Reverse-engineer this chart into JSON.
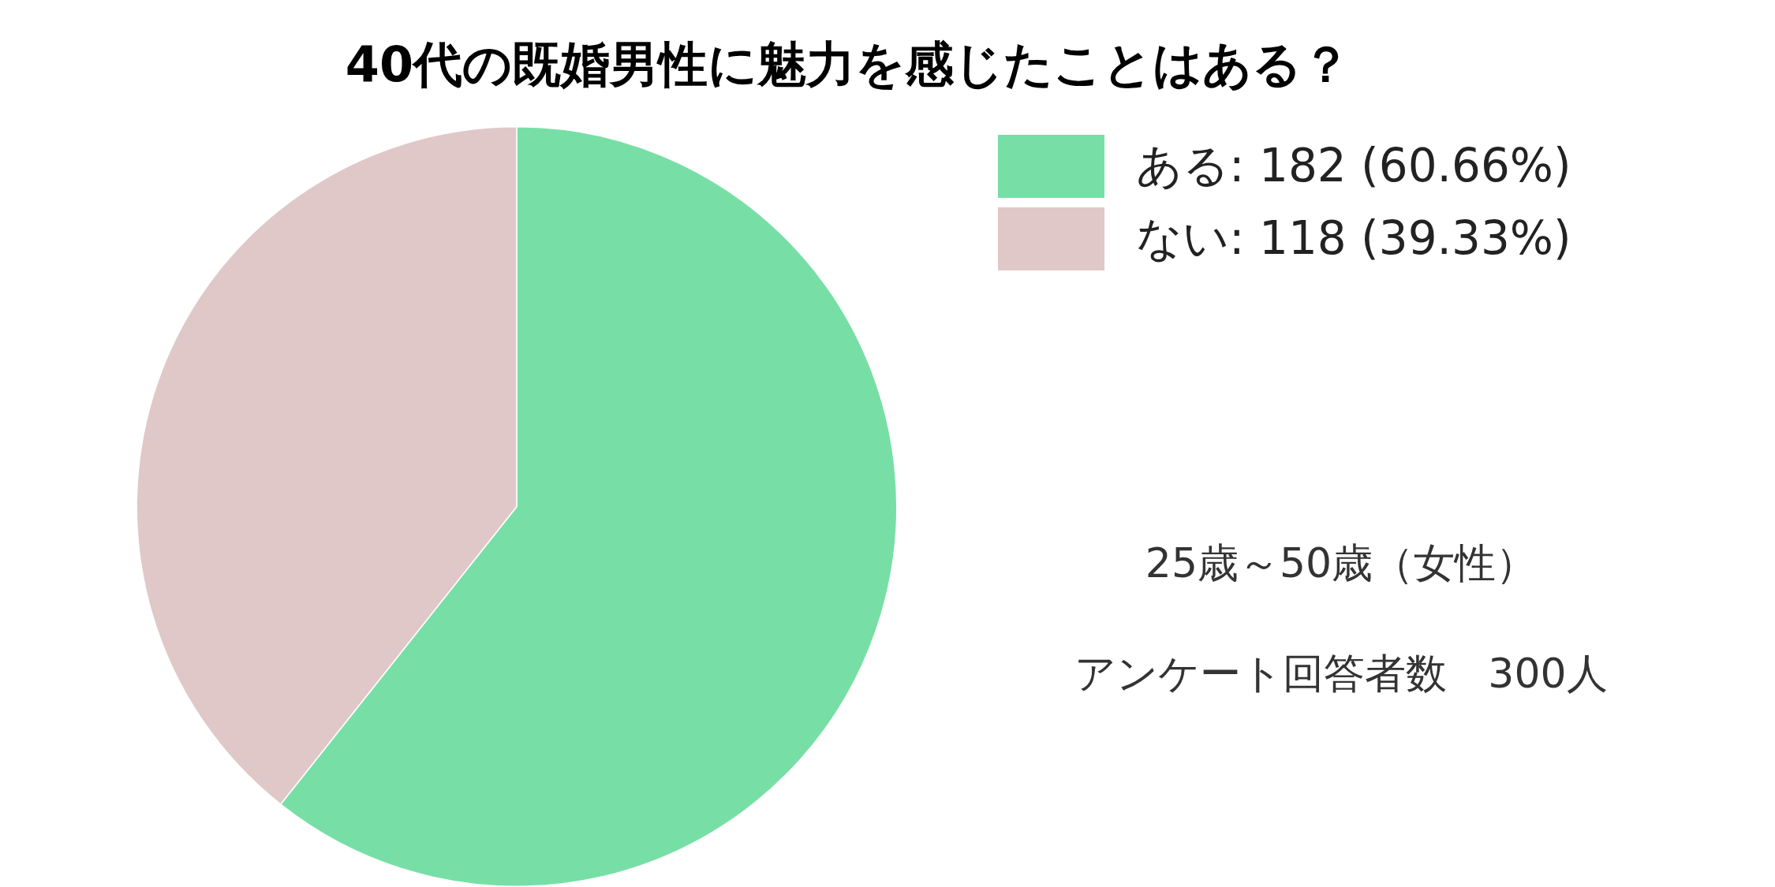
{
  "chart_data": {
    "type": "pie",
    "title": "40代の既婚男性に魅力を感じたことはある？",
    "categories": [
      "ある: 182 (60.66%)",
      "ない: 118 (39.33%)"
    ],
    "values": [
      182,
      118
    ],
    "colors": [
      "#77dfa5",
      "#e0c8c8"
    ],
    "legend": "top right",
    "annotations": [
      "25歳～50歳（女性）",
      "アンケート回答者数　300人"
    ]
  }
}
